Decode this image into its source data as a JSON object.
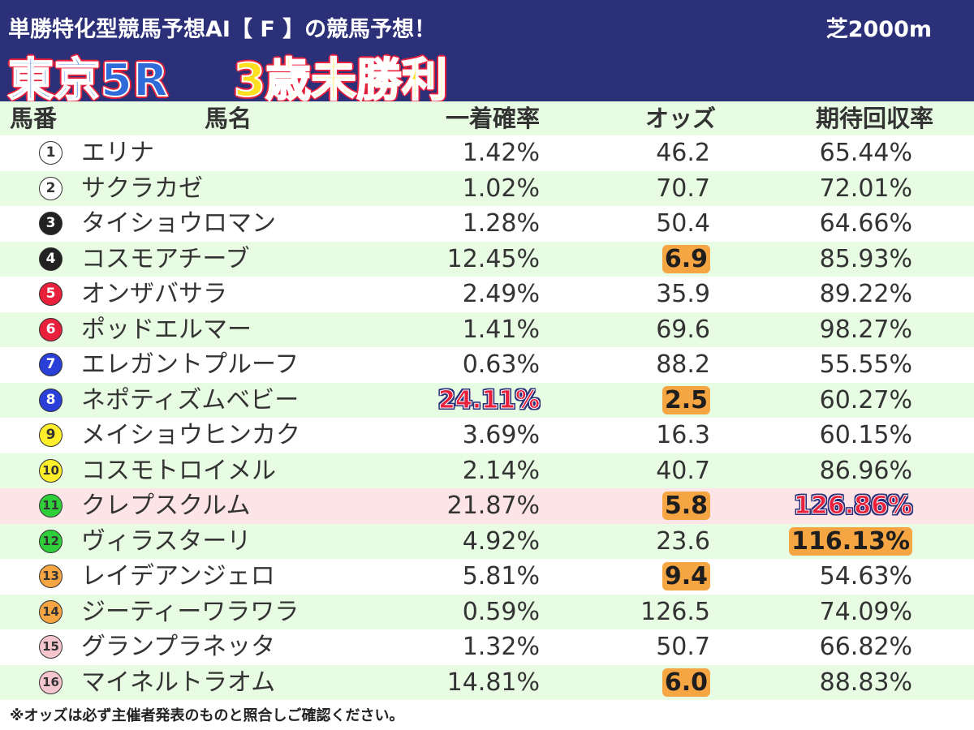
{
  "header": {
    "subtitle": "単勝特化型競馬予想AI【 F 】の競馬予想！",
    "surface": "芝2000m",
    "race": "東京5R",
    "race_class": "3歳未勝利"
  },
  "columns": {
    "no": "馬番",
    "name": "馬名",
    "prob": "一着確率",
    "odds": "オッズ",
    "ret": "期待回収率"
  },
  "horses": [
    {
      "no": "1",
      "name": "エリナ",
      "prob": "1.42%",
      "odds": "46.2",
      "ret": "65.44%",
      "badge_bg": "#ffffff",
      "badge_fg": "#333333"
    },
    {
      "no": "2",
      "name": "サクラカゼ",
      "prob": "1.02%",
      "odds": "70.7",
      "ret": "72.01%",
      "badge_bg": "#ffffff",
      "badge_fg": "#333333"
    },
    {
      "no": "3",
      "name": "タイショウロマン",
      "prob": "1.28%",
      "odds": "50.4",
      "ret": "64.66%",
      "badge_bg": "#222222",
      "badge_fg": "#ffffff"
    },
    {
      "no": "4",
      "name": "コスモアチーブ",
      "prob": "12.45%",
      "odds": "6.9",
      "ret": "85.93%",
      "badge_bg": "#222222",
      "badge_fg": "#ffffff"
    },
    {
      "no": "5",
      "name": "オンザバサラ",
      "prob": "2.49%",
      "odds": "35.9",
      "ret": "89.22%",
      "badge_bg": "#e8203b",
      "badge_fg": "#ffffff"
    },
    {
      "no": "6",
      "name": "ポッドエルマー",
      "prob": "1.41%",
      "odds": "69.6",
      "ret": "98.27%",
      "badge_bg": "#e8203b",
      "badge_fg": "#ffffff"
    },
    {
      "no": "7",
      "name": "エレガントプルーフ",
      "prob": "0.63%",
      "odds": "88.2",
      "ret": "55.55%",
      "badge_bg": "#2a3fd8",
      "badge_fg": "#ffffff"
    },
    {
      "no": "8",
      "name": "ネポティズムベビー",
      "prob": "24.11%",
      "odds": "2.5",
      "ret": "60.27%",
      "badge_bg": "#2a3fd8",
      "badge_fg": "#ffffff"
    },
    {
      "no": "9",
      "name": "メイショウヒンカク",
      "prob": "3.69%",
      "odds": "16.3",
      "ret": "60.15%",
      "badge_bg": "#ffef2a",
      "badge_fg": "#333333"
    },
    {
      "no": "10",
      "name": "コスモトロイメル",
      "prob": "2.14%",
      "odds": "40.7",
      "ret": "86.96%",
      "badge_bg": "#ffef2a",
      "badge_fg": "#333333"
    },
    {
      "no": "11",
      "name": "クレプスクルム",
      "prob": "21.87%",
      "odds": "5.8",
      "ret": "126.86%",
      "badge_bg": "#2fcf3a",
      "badge_fg": "#333333"
    },
    {
      "no": "12",
      "name": "ヴィラスターリ",
      "prob": "4.92%",
      "odds": "23.6",
      "ret": "116.13%",
      "badge_bg": "#2fcf3a",
      "badge_fg": "#333333"
    },
    {
      "no": "13",
      "name": "レイデアンジェロ",
      "prob": "5.81%",
      "odds": "9.4",
      "ret": "54.63%",
      "badge_bg": "#f5a542",
      "badge_fg": "#333333"
    },
    {
      "no": "14",
      "name": "ジーティーワラワラ",
      "prob": "0.59%",
      "odds": "126.5",
      "ret": "74.09%",
      "badge_bg": "#f5a542",
      "badge_fg": "#333333"
    },
    {
      "no": "15",
      "name": "グランプラネッタ",
      "prob": "1.32%",
      "odds": "50.7",
      "ret": "66.82%",
      "badge_bg": "#f6c6cf",
      "badge_fg": "#333333"
    },
    {
      "no": "16",
      "name": "マイネルトラオム",
      "prob": "14.81%",
      "odds": "6.0",
      "ret": "88.83%",
      "badge_bg": "#f6c6cf",
      "badge_fg": "#333333"
    }
  ],
  "highlights": {
    "odds_orange": [
      "4",
      "8",
      "11",
      "13",
      "16"
    ],
    "prob_blue_red": [
      "8"
    ],
    "ret_blue_red": [
      "11"
    ],
    "ret_orange": [
      "12"
    ],
    "row_highlight": [
      "11"
    ]
  },
  "note": "※オッズは必ず主催者発表のものと照合しご確認ください。"
}
